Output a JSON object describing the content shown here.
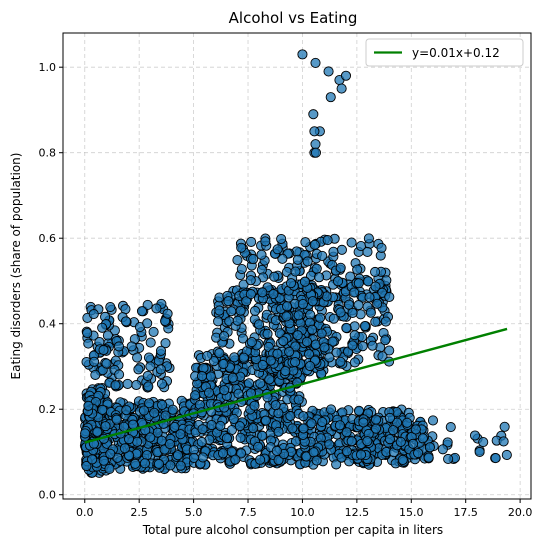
{
  "chart_data": {
    "type": "scatter",
    "title": "Alcohol vs Eating",
    "xlabel": "Total pure alcohol consumption per capita in liters",
    "ylabel": "Eating disorders (share of population)",
    "xlim": [
      -1.0,
      20.5
    ],
    "ylim": [
      -0.01,
      1.08
    ],
    "xticks": [
      0.0,
      2.5,
      5.0,
      7.5,
      10.0,
      12.5,
      15.0,
      17.5,
      20.0
    ],
    "xtick_labels": [
      "0.0",
      "2.5",
      "5.0",
      "7.5",
      "10.0",
      "12.5",
      "15.0",
      "17.5",
      "20.0"
    ],
    "yticks": [
      0.0,
      0.2,
      0.4,
      0.6,
      0.8,
      1.0
    ],
    "ytick_labels": [
      "0.0",
      "0.2",
      "0.4",
      "0.6",
      "0.8",
      "1.0"
    ],
    "grid": true,
    "legend": {
      "position": "top-right",
      "entries": [
        "y=0.01x+0.12"
      ]
    },
    "regression_line": {
      "label": "y=0.01x+0.12",
      "slope": 0.0137,
      "intercept": 0.122,
      "x_range": [
        0.0,
        19.4
      ],
      "color": "#008000"
    },
    "point_color": "#1f77b4",
    "point_edge_color": "#000000",
    "clusters": [
      {
        "x_range": [
          0.0,
          1.0
        ],
        "y_range": [
          0.05,
          0.25
        ],
        "count": 140
      },
      {
        "x_range": [
          0.0,
          5.0
        ],
        "y_range": [
          0.06,
          0.22
        ],
        "count": 420
      },
      {
        "x_range": [
          1.0,
          4.0
        ],
        "y_range": [
          0.25,
          0.45
        ],
        "count": 90
      },
      {
        "x_range": [
          0.0,
          1.0
        ],
        "y_range": [
          0.28,
          0.44
        ],
        "count": 35
      },
      {
        "x_range": [
          5.0,
          10.0
        ],
        "y_range": [
          0.07,
          0.33
        ],
        "count": 480
      },
      {
        "x_range": [
          6.0,
          11.0
        ],
        "y_range": [
          0.28,
          0.48
        ],
        "count": 240
      },
      {
        "x_range": [
          7.0,
          14.0
        ],
        "y_range": [
          0.45,
          0.6
        ],
        "count": 150
      },
      {
        "x_range": [
          9.0,
          14.0
        ],
        "y_range": [
          0.3,
          0.5
        ],
        "count": 200
      },
      {
        "x_range": [
          10.0,
          15.0
        ],
        "y_range": [
          0.07,
          0.2
        ],
        "count": 260
      },
      {
        "x_range": [
          12.0,
          16.0
        ],
        "y_range": [
          0.08,
          0.18
        ],
        "count": 90
      },
      {
        "x_range": [
          15.0,
          19.5
        ],
        "y_range": [
          0.08,
          0.16
        ],
        "count": 25
      }
    ],
    "sequences": [
      {
        "x": [
          10.0,
          10.6,
          11.2,
          11.7,
          12.0,
          11.8,
          11.3,
          10.8,
          10.55
        ],
        "y": [
          1.03,
          1.01,
          0.99,
          0.97,
          0.98,
          0.95,
          0.93,
          0.85,
          0.8
        ]
      },
      {
        "x": [
          10.5,
          10.55,
          10.6,
          10.62
        ],
        "y": [
          0.89,
          0.85,
          0.82,
          0.8
        ]
      }
    ]
  }
}
